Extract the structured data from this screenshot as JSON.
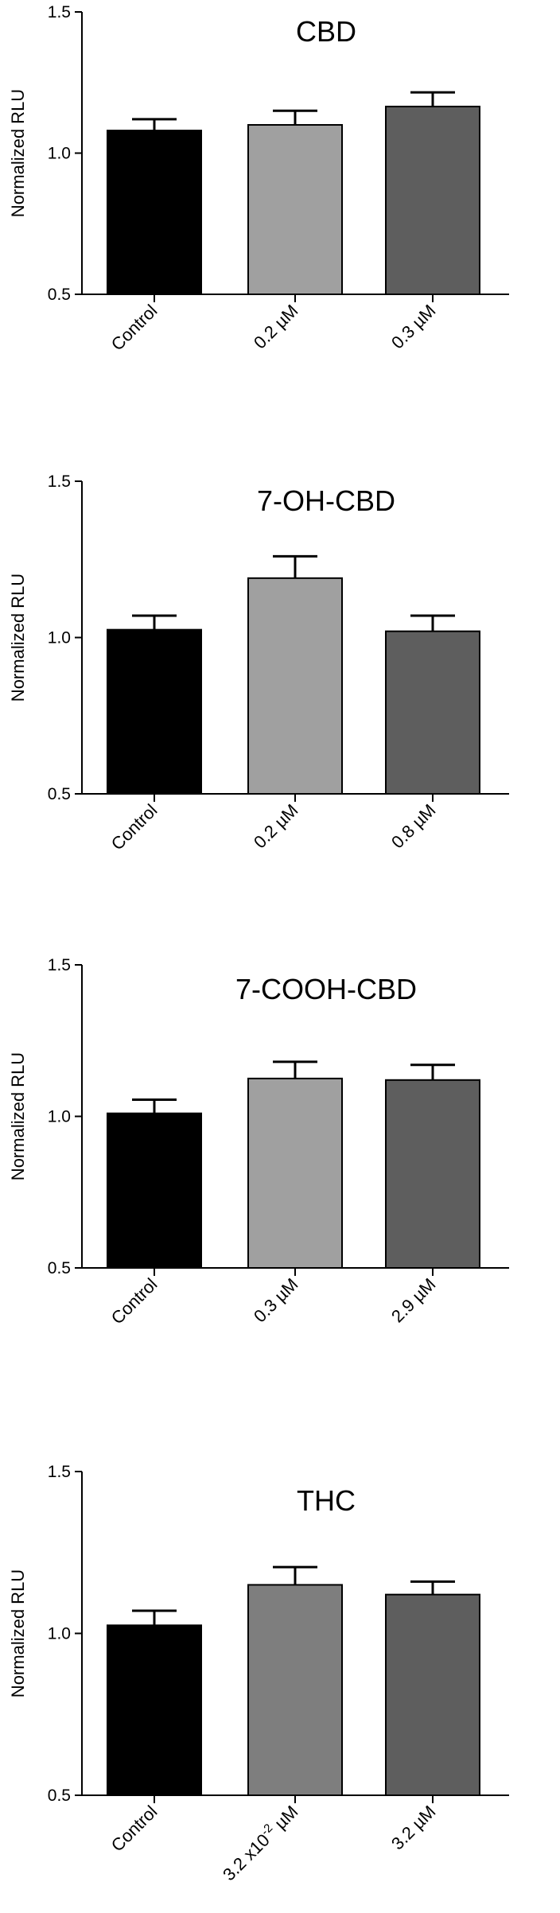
{
  "chart_data": [
    {
      "type": "bar",
      "title": "CBD",
      "ylabel": "Normalized RLU",
      "ylim": [
        0.5,
        1.5
      ],
      "yticks": [
        "0.5",
        "1.0",
        "1.5"
      ],
      "categories": [
        "Control",
        "0.2 µM",
        "0.3 µM"
      ],
      "values": [
        1.08,
        1.1,
        1.165
      ],
      "errors": [
        0.04,
        0.05,
        0.05
      ],
      "colors": [
        "#000000",
        "#a0a0a0",
        "#5e5e5e"
      ]
    },
    {
      "type": "bar",
      "title": "7-OH-CBD",
      "ylabel": "Normalized RLU",
      "ylim": [
        0.5,
        1.5
      ],
      "yticks": [
        "0.5",
        "1.0",
        "1.5"
      ],
      "categories": [
        "Control",
        "0.2 µM",
        "0.8 µM"
      ],
      "values": [
        1.025,
        1.19,
        1.02
      ],
      "errors": [
        0.045,
        0.07,
        0.05
      ],
      "colors": [
        "#000000",
        "#a0a0a0",
        "#5e5e5e"
      ]
    },
    {
      "type": "bar",
      "title": "7-COOH-CBD",
      "ylabel": "Normalized RLU",
      "ylim": [
        0.5,
        1.5
      ],
      "yticks": [
        "0.5",
        "1.0",
        "1.5"
      ],
      "categories": [
        "Control",
        "0.3 µM",
        "2.9 µM"
      ],
      "values": [
        1.01,
        1.125,
        1.12
      ],
      "errors": [
        0.045,
        0.055,
        0.05
      ],
      "colors": [
        "#000000",
        "#a0a0a0",
        "#5e5e5e"
      ]
    },
    {
      "type": "bar",
      "title": "THC",
      "ylabel": "Normalized RLU",
      "ylim": [
        0.5,
        1.5
      ],
      "yticks": [
        "0.5",
        "1.0",
        "1.5"
      ],
      "categories": [
        "Control",
        "3.2 x10-2 µM",
        "3.2 µM"
      ],
      "category_labels": [
        {
          "main": "Control"
        },
        {
          "main": "3.2 x10",
          "sup": "-2",
          "tail": " µM"
        },
        {
          "main": "3.2 µM"
        }
      ],
      "values": [
        1.025,
        1.15,
        1.12
      ],
      "errors": [
        0.045,
        0.055,
        0.04
      ],
      "colors": [
        "#000000",
        "#7e7e7e",
        "#5e5e5e"
      ]
    }
  ]
}
